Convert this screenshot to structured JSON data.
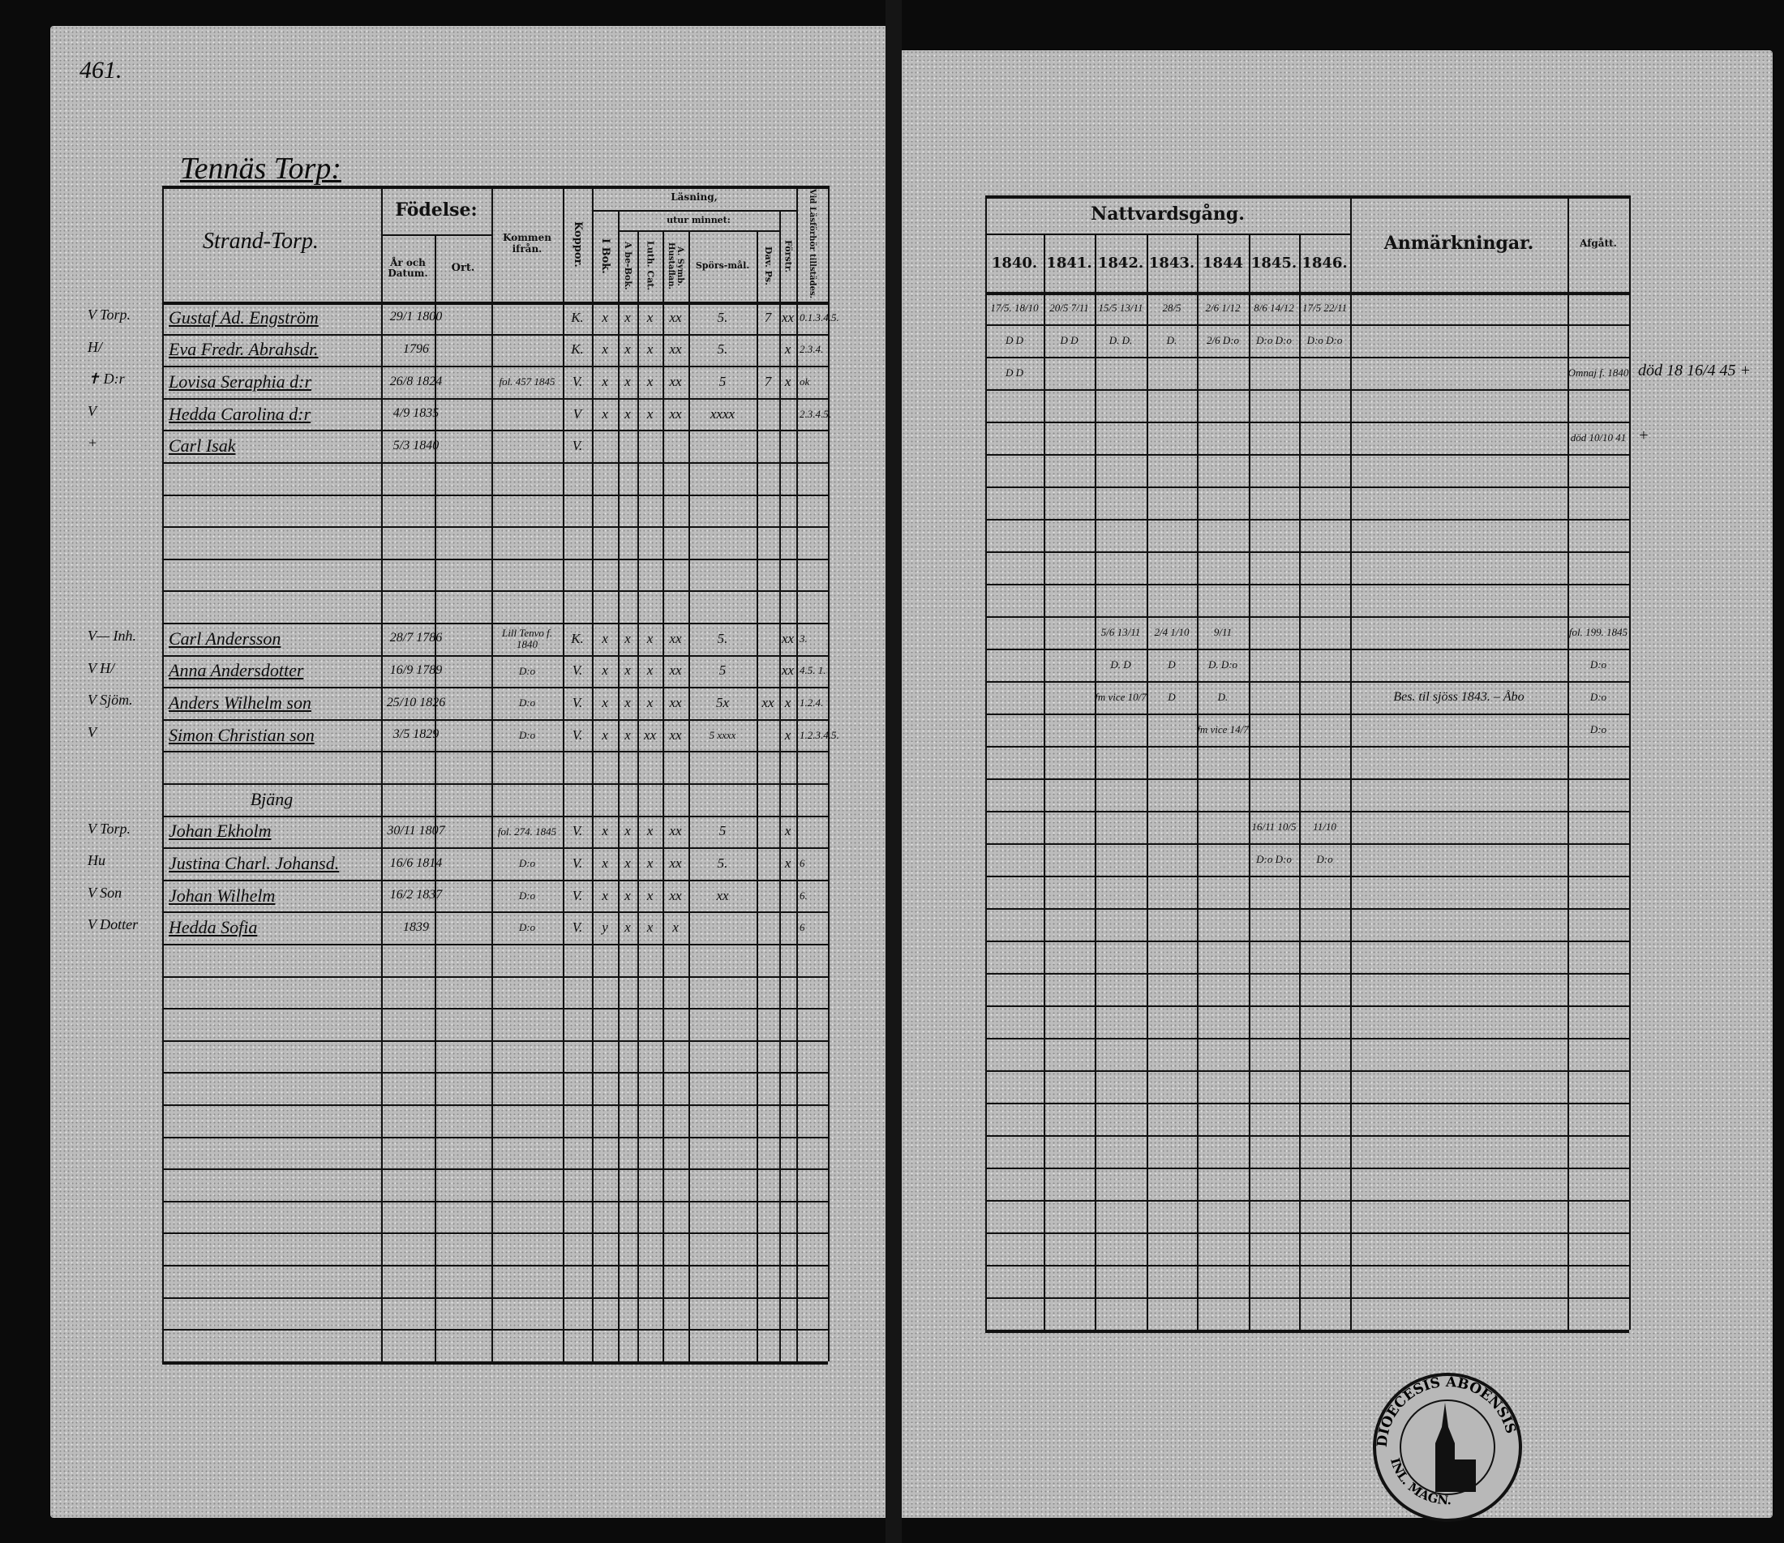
{
  "page_number": "461.",
  "left": {
    "title": "Tennäs Torp:",
    "place_label": "Strand-Torp.",
    "headers": {
      "fodelse": "Födelse:",
      "ar_och_datum": "År och Datum.",
      "ort": "Ort.",
      "kommen_ifran": "Kommen ifrån.",
      "koppor": "Koppor.",
      "lasning": "Läsning,",
      "i_bok": "I Bok.",
      "utur_minnet": "utur minnet:",
      "a_be_bok": "A be-Bok.",
      "luth_cat": "Luth. Cat.",
      "a_symb": "A. Symb. Hustaflan.",
      "sporsmal": "Spörs-mål.",
      "dav_ps": "Dav. Ps.",
      "forstr": "Förstr.",
      "vid_lasforhor": "Vid Läsförhör tillstädes."
    },
    "rows": [
      {
        "row": 0,
        "margin": "V Torp.",
        "name": "Gustaf Ad. Engström",
        "born": "29/1 1800",
        "from": "",
        "cells": [
          "K.",
          "x",
          "x",
          "x",
          "xx",
          "5.",
          "7",
          "xx",
          "0.1.3.4.5."
        ]
      },
      {
        "row": 1,
        "margin": "H/",
        "name": "Eva Fredr. Abrahsdr.",
        "born": "1796",
        "from": "",
        "cells": [
          "K.",
          "x",
          "x",
          "x",
          "xx",
          "5.",
          "",
          "x",
          "2.3.4."
        ]
      },
      {
        "row": 2,
        "margin": "✝ D:r",
        "name": "Lovisa Seraphia d:r",
        "born": "26/8 1824",
        "from": "fol. 457 1845",
        "cells": [
          "V.",
          "x",
          "x",
          "x",
          "xx",
          "5",
          "7",
          "x",
          "ok"
        ]
      },
      {
        "row": 3,
        "margin": "V",
        "name": "Hedda Carolina d:r",
        "born": "4/9 1835",
        "from": "",
        "cells": [
          "V",
          "x",
          "x",
          "x",
          "xx",
          "xxxx",
          "",
          "",
          "2.3.4.5."
        ]
      },
      {
        "row": 4,
        "margin": "+",
        "name": "Carl Isak",
        "born": "5/3 1840",
        "from": "",
        "cells": [
          "V.",
          "",
          "",
          "",
          "",
          "",
          "",
          "",
          ""
        ]
      },
      {
        "row": 10,
        "margin": "V— Inh.",
        "name": "Carl Andersson",
        "born": "28/7 1786",
        "from": "Lill Tenvo f. 1840",
        "cells": [
          "K.",
          "x",
          "x",
          "x",
          "xx",
          "5.",
          "",
          "xx",
          "3."
        ]
      },
      {
        "row": 11,
        "margin": "V H/",
        "name": "Anna Andersdotter",
        "born": "16/9 1789",
        "from": "D:o",
        "cells": [
          "V.",
          "x",
          "x",
          "x",
          "xx",
          "5",
          "",
          "xx",
          "4.5. 1."
        ]
      },
      {
        "row": 12,
        "margin": "V Sjöm.",
        "name": "Anders Wilhelm son",
        "born": "25/10 1826",
        "from": "D:o",
        "cells": [
          "V.",
          "x",
          "x",
          "x",
          "xx",
          "5x",
          "xx",
          "x",
          "1.2.4."
        ]
      },
      {
        "row": 13,
        "margin": "V",
        "name": "Simon Christian son",
        "born": "3/5 1829",
        "from": "D:o",
        "cells": [
          "V.",
          "x",
          "x",
          "xx",
          "xx",
          "5 xxxx",
          "",
          "x",
          "1.2.3.4.5."
        ]
      },
      {
        "row": 15,
        "margin": "",
        "name": "Bjäng",
        "born": "",
        "from": "",
        "section": true,
        "cells": []
      },
      {
        "row": 16,
        "margin": "V Torp.",
        "name": "Johan Ekholm",
        "born": "30/11 1807",
        "from": "fol. 274. 1845",
        "cells": [
          "V.",
          "x",
          "x",
          "x",
          "xx",
          "5",
          "",
          "x",
          ""
        ]
      },
      {
        "row": 17,
        "margin": "Hu",
        "name": "Justina Charl. Johansd.",
        "born": "16/6 1814",
        "from": "D:o",
        "cells": [
          "V.",
          "x",
          "x",
          "x",
          "xx",
          "5.",
          "",
          "x",
          "6"
        ]
      },
      {
        "row": 18,
        "margin": "V Son",
        "name": "Johan Wilhelm",
        "born": "16/2 1837",
        "from": "D:o",
        "cells": [
          "V.",
          "x",
          "x",
          "x",
          "xx",
          "xx",
          "",
          "",
          "6."
        ]
      },
      {
        "row": 19,
        "margin": "V Dotter",
        "name": "Hedda Sofia",
        "born": "1839",
        "from": "D:o",
        "cells": [
          "V.",
          "y",
          "x",
          "x",
          "x",
          "",
          "",
          "",
          "6"
        ]
      }
    ]
  },
  "right": {
    "headers": {
      "nattvardsgang": "Nattvardsgång.",
      "years": [
        "1840.",
        "1841.",
        "1842.",
        "1843.",
        "1844",
        "1845.",
        "1846."
      ],
      "anmarkningar": "Anmärkningar.",
      "afgatt": "Afgått."
    },
    "rows": [
      {
        "row": 0,
        "cells": [
          "17/5. 18/10",
          "20/5 7/11",
          "15/5 13/11",
          "28/5",
          "2/6 1/12",
          "8/6 14/12",
          "17/5 22/11",
          "",
          ""
        ]
      },
      {
        "row": 1,
        "cells": [
          "D D",
          "D D",
          "D. D.",
          "D.",
          "2/6 D:o",
          "D:o D:o",
          "D:o D:o",
          "",
          ""
        ]
      },
      {
        "row": 2,
        "cells": [
          "D D",
          "",
          "",
          "",
          "",
          "",
          "",
          "",
          "Omnaj f. 1840"
        ],
        "margin_note": "död 18 16/4 45 +"
      },
      {
        "row": 4,
        "cells": [
          "",
          "",
          "",
          "",
          "",
          "",
          "",
          "",
          "död 10/10 41"
        ],
        "margin_note": "+"
      },
      {
        "row": 10,
        "cells": [
          "",
          "",
          "5/6 13/11",
          "2/4 1/10",
          "9/11",
          "",
          "",
          "",
          "fol. 199. 1845"
        ]
      },
      {
        "row": 11,
        "cells": [
          "",
          "",
          "D. D",
          "D",
          "D. D:o",
          "",
          "",
          "",
          "D:o"
        ]
      },
      {
        "row": 12,
        "cells": [
          "",
          "",
          "fm vice 10/7",
          "D",
          "D.",
          "",
          "",
          "Bes. til sjöss 1843. – Åbo",
          "D:o"
        ]
      },
      {
        "row": 13,
        "cells": [
          "",
          "",
          "",
          "",
          "fm vice 14/7",
          "",
          "",
          "",
          "D:o"
        ]
      },
      {
        "row": 16,
        "cells": [
          "",
          "",
          "",
          "",
          "",
          "16/11 10/5",
          "11/10",
          "",
          ""
        ]
      },
      {
        "row": 17,
        "cells": [
          "",
          "",
          "",
          "",
          "",
          "D:o D:o",
          "D:o",
          "",
          ""
        ]
      }
    ]
  },
  "stamp": {
    "text_top": "DIOECESIS ABOENSIS",
    "text_bottom": "INL. MAGN."
  },
  "colors": {
    "paper": "#bcbcbc",
    "ink": "#111111",
    "background": "#0b0b0b"
  }
}
